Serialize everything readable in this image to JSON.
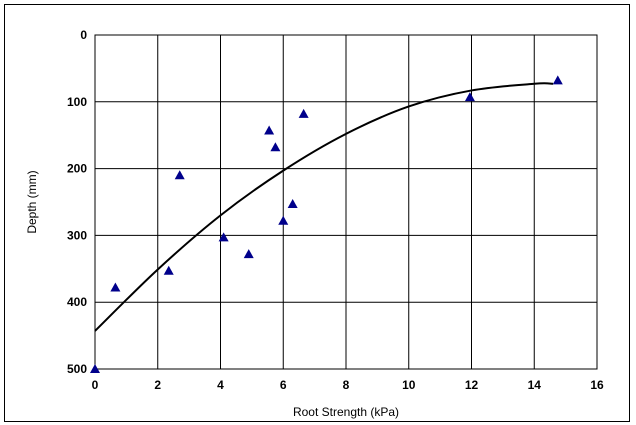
{
  "chart_data": {
    "type": "scatter",
    "title": "",
    "xlabel": "Root Strength (kPa)",
    "ylabel": "Depth (mm)",
    "xlim": [
      0,
      16
    ],
    "ylim": [
      0,
      500
    ],
    "y_inverted": true,
    "x_ticks": [
      0,
      2,
      4,
      6,
      8,
      10,
      12,
      14,
      16
    ],
    "y_ticks": [
      0,
      100,
      200,
      300,
      400,
      500
    ],
    "grid": true,
    "legend": "none",
    "series": [
      {
        "marker": "triangle",
        "color": "#00008b",
        "points": [
          {
            "x": 0.0,
            "y": 500
          },
          {
            "x": 0.65,
            "y": 378
          },
          {
            "x": 2.35,
            "y": 353
          },
          {
            "x": 2.7,
            "y": 210
          },
          {
            "x": 4.1,
            "y": 303
          },
          {
            "x": 4.9,
            "y": 328
          },
          {
            "x": 5.55,
            "y": 143
          },
          {
            "x": 5.75,
            "y": 168
          },
          {
            "x": 6.0,
            "y": 278
          },
          {
            "x": 6.3,
            "y": 253
          },
          {
            "x": 6.65,
            "y": 118
          },
          {
            "x": 11.95,
            "y": 93
          },
          {
            "x": 14.75,
            "y": 68
          }
        ]
      }
    ],
    "trendline": {
      "type": "polynomial-2",
      "color": "#000000",
      "points": [
        {
          "x": 0,
          "y": 443
        },
        {
          "x": 2,
          "y": 351
        },
        {
          "x": 4,
          "y": 270
        },
        {
          "x": 6,
          "y": 203
        },
        {
          "x": 8,
          "y": 148
        },
        {
          "x": 10,
          "y": 107
        },
        {
          "x": 12,
          "y": 83
        },
        {
          "x": 14,
          "y": 73
        },
        {
          "x": 14.6,
          "y": 73
        }
      ]
    }
  }
}
